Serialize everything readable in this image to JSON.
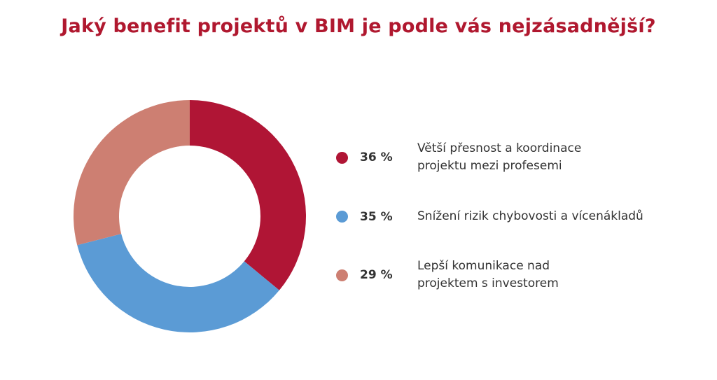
{
  "title": "Jaký benefit projektů v BIM je podle vás nejzásadnější?",
  "chart_data": {
    "type": "pie",
    "title": "Jaký benefit projektů v BIM je podle vás nejzásadnější?",
    "donut": true,
    "unit": "%",
    "slices": [
      {
        "pct_label": "36 %",
        "value": 36,
        "label": "Větší přesnost a koordinace\nprojektu mezi profesemi",
        "color": "#b01535"
      },
      {
        "pct_label": "35 %",
        "value": 35,
        "label": "Snížení rizik chybovosti a vícenákladů",
        "color": "#5b9bd5"
      },
      {
        "pct_label": "29 %",
        "value": 29,
        "label": "Lepší komunikace nad\nprojektem s investorem",
        "color": "#cd7f72"
      }
    ]
  },
  "colors": {
    "title": "#b0182f",
    "text": "#333333",
    "background": "#ffffff"
  }
}
